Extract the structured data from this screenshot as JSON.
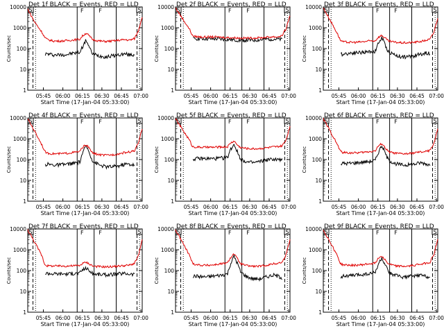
{
  "colors": {
    "events": "#000000",
    "lld": "#e00000",
    "background": "#ffffff"
  },
  "common": {
    "ylabel": "Counts/sec",
    "xlabel": "Start Time (17-Jan-04 05:33:00)",
    "xtick_labels": [
      "05:45",
      "06:00",
      "06:15",
      "06:30",
      "06:45",
      "07:00"
    ],
    "ytick_labels": [
      "1",
      "10",
      "100",
      "1000",
      "10000"
    ],
    "flag_left": "S",
    "flag_right": "S",
    "flag_marks": [
      "F",
      "F"
    ]
  },
  "chart_data": [
    {
      "type": "line",
      "title": "Det 1f BLACK = Events, RED = LLD",
      "yscale": "log",
      "ylim": [
        1,
        10000
      ],
      "x": [
        0,
        5,
        11,
        13,
        15,
        20,
        25,
        30,
        35,
        40,
        42,
        45,
        48,
        50,
        55,
        60,
        65,
        70,
        75,
        78,
        82,
        85,
        88
      ],
      "series": [
        {
          "name": "Events",
          "color": "black",
          "values": [
            null,
            null,
            null,
            55,
            55,
            50,
            50,
            52,
            60,
            65,
            120,
            260,
            90,
            55,
            45,
            40,
            45,
            50,
            55,
            50,
            50,
            null,
            null
          ]
        },
        {
          "name": "LLD",
          "color": "red",
          "values": [
            8000,
            2000,
            600,
            350,
            270,
            230,
            230,
            240,
            260,
            280,
            400,
            560,
            360,
            270,
            230,
            220,
            230,
            250,
            270,
            250,
            300,
            700,
            3500
          ]
        }
      ]
    },
    {
      "type": "line",
      "title": "Det 2f BLACK = Events, RED = LLD",
      "yscale": "log",
      "ylim": [
        1,
        10000
      ],
      "x": [
        0,
        5,
        11,
        13,
        15,
        20,
        25,
        30,
        35,
        40,
        45,
        50,
        55,
        60,
        65,
        70,
        75,
        78,
        82,
        85,
        88
      ],
      "series": [
        {
          "name": "Events",
          "color": "black",
          "values": [
            null,
            null,
            null,
            280,
            300,
            300,
            290,
            290,
            280,
            270,
            260,
            250,
            250,
            250,
            260,
            280,
            290,
            280,
            270,
            null,
            null
          ]
        },
        {
          "name": "LLD",
          "color": "red",
          "values": [
            9000,
            3000,
            800,
            420,
            380,
            360,
            360,
            360,
            350,
            340,
            330,
            320,
            320,
            320,
            330,
            350,
            370,
            360,
            420,
            900,
            4000
          ]
        }
      ]
    },
    {
      "type": "line",
      "title": "Det 3f BLACK = Events, RED = LLD",
      "yscale": "log",
      "ylim": [
        1,
        10000
      ],
      "x": [
        0,
        5,
        11,
        13,
        15,
        20,
        25,
        30,
        35,
        40,
        42,
        45,
        48,
        50,
        55,
        60,
        65,
        70,
        75,
        78,
        82,
        85,
        88
      ],
      "series": [
        {
          "name": "Events",
          "color": "black",
          "values": [
            null,
            null,
            null,
            50,
            55,
            60,
            65,
            65,
            70,
            75,
            160,
            340,
            130,
            70,
            50,
            40,
            40,
            45,
            55,
            60,
            60,
            null,
            null
          ]
        },
        {
          "name": "LLD",
          "color": "red",
          "values": [
            9000,
            2500,
            500,
            260,
            210,
            200,
            200,
            210,
            230,
            240,
            340,
            430,
            300,
            230,
            200,
            190,
            190,
            200,
            220,
            240,
            280,
            600,
            3000
          ]
        }
      ]
    },
    {
      "type": "line",
      "title": "Det 4f BLACK = Events, RED = LLD",
      "yscale": "log",
      "ylim": [
        1,
        10000
      ],
      "x": [
        0,
        5,
        11,
        13,
        15,
        20,
        25,
        30,
        35,
        40,
        42,
        45,
        48,
        50,
        55,
        60,
        65,
        70,
        75,
        78,
        82,
        85,
        88
      ],
      "series": [
        {
          "name": "Events",
          "color": "black",
          "values": [
            null,
            null,
            null,
            55,
            60,
            55,
            55,
            60,
            65,
            75,
            200,
            460,
            170,
            85,
            55,
            45,
            45,
            50,
            60,
            60,
            55,
            null,
            null
          ]
        },
        {
          "name": "LLD",
          "color": "red",
          "values": [
            9000,
            2500,
            500,
            250,
            200,
            190,
            190,
            200,
            220,
            240,
            380,
            520,
            300,
            200,
            170,
            160,
            170,
            190,
            220,
            230,
            260,
            600,
            3000
          ]
        }
      ]
    },
    {
      "type": "line",
      "title": "Det 5f BLACK = Events, RED = LLD",
      "yscale": "log",
      "ylim": [
        1,
        10000
      ],
      "x": [
        0,
        5,
        11,
        13,
        15,
        20,
        25,
        30,
        35,
        40,
        42,
        45,
        48,
        50,
        55,
        60,
        65,
        70,
        75,
        78,
        82,
        85,
        88
      ],
      "series": [
        {
          "name": "Events",
          "color": "black",
          "values": [
            null,
            null,
            null,
            100,
            110,
            110,
            110,
            110,
            115,
            125,
            280,
            550,
            200,
            110,
            75,
            70,
            80,
            95,
            105,
            100,
            95,
            null,
            null
          ]
        },
        {
          "name": "LLD",
          "color": "red",
          "values": [
            9000,
            3000,
            800,
            420,
            400,
            390,
            390,
            390,
            400,
            410,
            600,
            780,
            470,
            380,
            340,
            330,
            340,
            370,
            400,
            410,
            450,
            900,
            4000
          ]
        }
      ]
    },
    {
      "type": "line",
      "title": "Det 6f BLACK = Events, RED = LLD",
      "yscale": "log",
      "ylim": [
        1,
        10000
      ],
      "x": [
        0,
        5,
        11,
        13,
        15,
        20,
        25,
        30,
        35,
        40,
        42,
        45,
        48,
        50,
        55,
        60,
        65,
        70,
        75,
        78,
        82,
        85,
        88
      ],
      "series": [
        {
          "name": "Events",
          "color": "black",
          "values": [
            null,
            null,
            null,
            60,
            65,
            65,
            70,
            75,
            80,
            90,
            200,
            480,
            180,
            95,
            65,
            55,
            55,
            60,
            70,
            65,
            55,
            null,
            null
          ]
        },
        {
          "name": "LLD",
          "color": "red",
          "values": [
            9000,
            2500,
            500,
            260,
            220,
            210,
            210,
            220,
            240,
            260,
            420,
            600,
            340,
            240,
            200,
            190,
            190,
            210,
            230,
            240,
            270,
            600,
            3000
          ]
        }
      ]
    },
    {
      "type": "line",
      "title": "Det 7f BLACK = Events, RED = LLD",
      "yscale": "log",
      "ylim": [
        1,
        10000
      ],
      "x": [
        0,
        5,
        11,
        13,
        15,
        20,
        25,
        30,
        35,
        40,
        42,
        45,
        48,
        50,
        55,
        60,
        65,
        70,
        75,
        78,
        82,
        85,
        88
      ],
      "series": [
        {
          "name": "Events",
          "color": "black",
          "values": [
            null,
            null,
            null,
            70,
            75,
            70,
            70,
            70,
            72,
            75,
            110,
            130,
            90,
            70,
            65,
            62,
            65,
            70,
            72,
            70,
            65,
            null,
            null
          ]
        },
        {
          "name": "LLD",
          "color": "red",
          "values": [
            9000,
            2500,
            500,
            200,
            170,
            165,
            165,
            165,
            170,
            175,
            220,
            250,
            200,
            165,
            155,
            150,
            155,
            165,
            175,
            180,
            220,
            500,
            3000
          ]
        }
      ]
    },
    {
      "type": "line",
      "title": "Det 8f BLACK = Events, RED = LLD",
      "yscale": "log",
      "ylim": [
        1,
        10000
      ],
      "x": [
        0,
        5,
        11,
        13,
        15,
        20,
        25,
        30,
        35,
        40,
        42,
        45,
        48,
        50,
        55,
        60,
        65,
        70,
        75,
        78,
        82,
        85,
        88
      ],
      "series": [
        {
          "name": "Events",
          "color": "black",
          "values": [
            null,
            null,
            null,
            50,
            55,
            50,
            50,
            55,
            60,
            70,
            190,
            500,
            190,
            85,
            50,
            40,
            40,
            50,
            60,
            55,
            45,
            null,
            null
          ]
        },
        {
          "name": "LLD",
          "color": "red",
          "values": [
            9000,
            2500,
            500,
            230,
            200,
            180,
            180,
            190,
            210,
            230,
            400,
            640,
            330,
            210,
            170,
            160,
            160,
            180,
            210,
            220,
            250,
            600,
            3000
          ]
        }
      ]
    },
    {
      "type": "line",
      "title": "Det 9f BLACK = Events, RED = LLD",
      "yscale": "log",
      "ylim": [
        1,
        10000
      ],
      "x": [
        0,
        5,
        11,
        13,
        15,
        20,
        25,
        30,
        35,
        40,
        42,
        45,
        48,
        50,
        55,
        60,
        65,
        70,
        75,
        78,
        82,
        85,
        88
      ],
      "series": [
        {
          "name": "Events",
          "color": "black",
          "values": [
            null,
            null,
            null,
            50,
            55,
            55,
            60,
            65,
            70,
            80,
            180,
            400,
            160,
            85,
            60,
            50,
            50,
            55,
            60,
            55,
            50,
            null,
            null
          ]
        },
        {
          "name": "LLD",
          "color": "red",
          "values": [
            9000,
            2500,
            500,
            220,
            190,
            180,
            180,
            190,
            210,
            230,
            380,
            520,
            300,
            210,
            170,
            160,
            160,
            180,
            210,
            220,
            250,
            600,
            3000
          ]
        }
      ]
    }
  ]
}
